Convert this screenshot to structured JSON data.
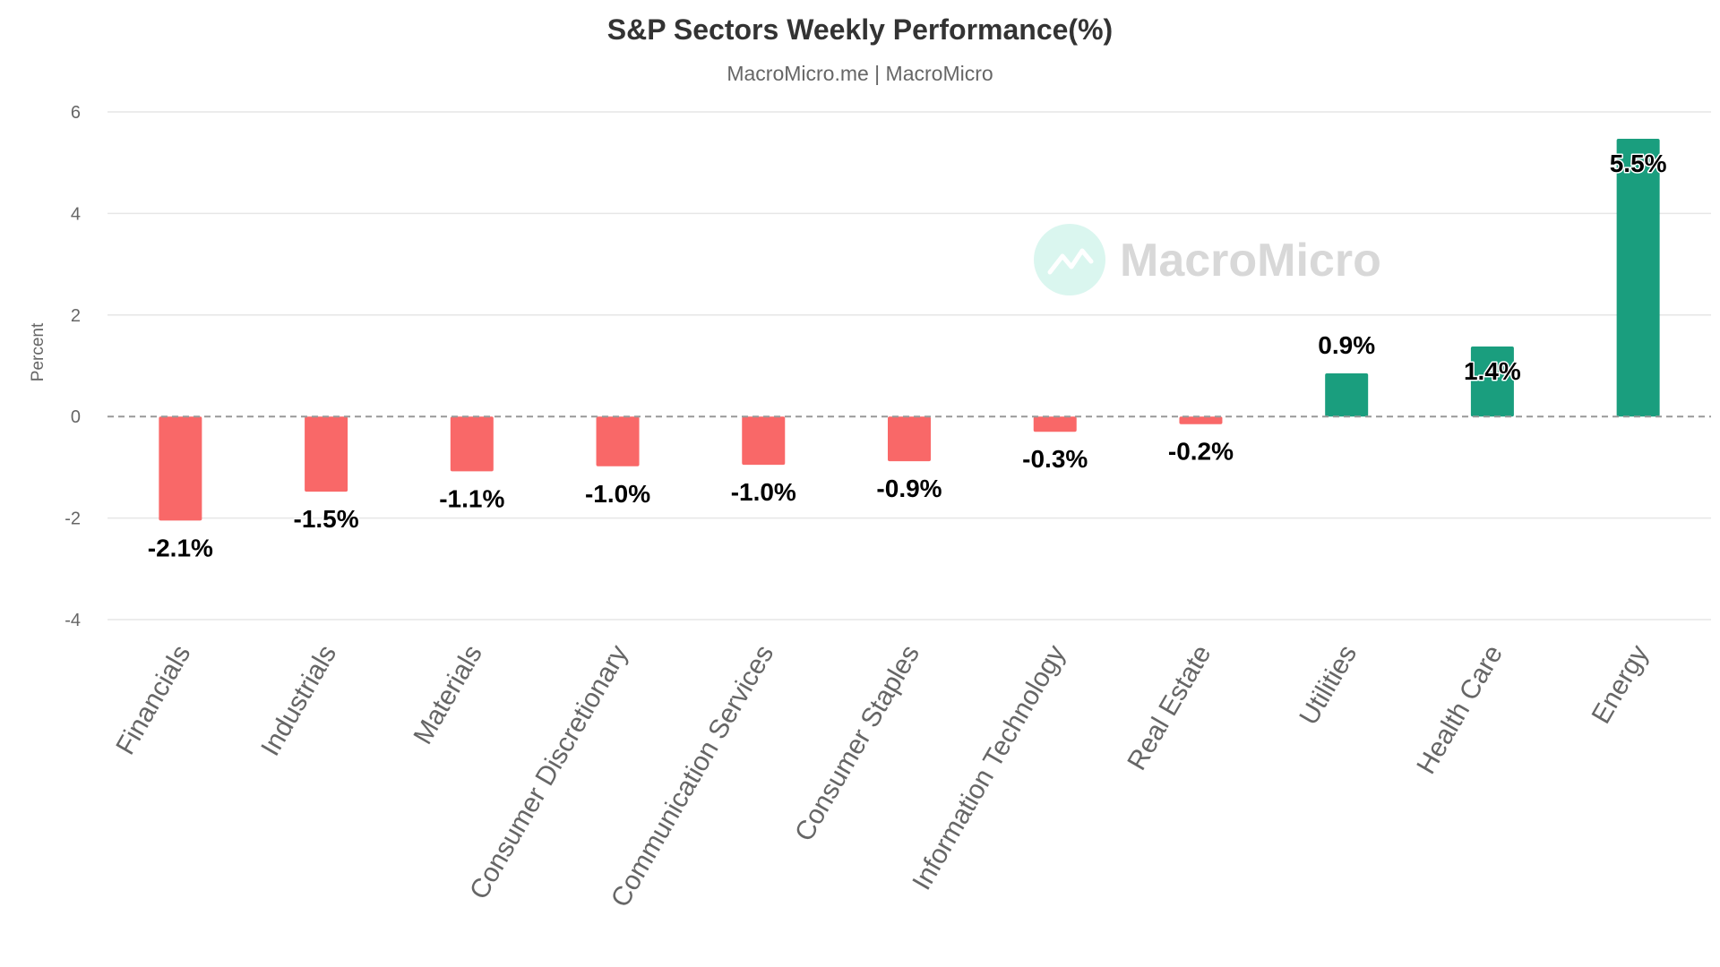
{
  "chart_data": {
    "type": "bar",
    "title": "S&P Sectors Weekly Performance(%)",
    "subtitle": "MacroMicro.me | MacroMicro",
    "ylabel": "Percent",
    "xlabel": "",
    "ylim": [
      -4,
      6
    ],
    "yticks": [
      -4,
      -2,
      0,
      2,
      4,
      6
    ],
    "grid": true,
    "legend": "none",
    "categories": [
      "Financials",
      "Industrials",
      "Materials",
      "Consumer Discretionary",
      "Communication Services",
      "Consumer Staples",
      "Information Technology",
      "Real Estate",
      "Utilities",
      "Health Care",
      "Energy"
    ],
    "values": [
      -2.05,
      -1.48,
      -1.08,
      -0.98,
      -0.95,
      -0.88,
      -0.3,
      -0.15,
      0.85,
      1.38,
      5.47
    ],
    "data_labels": [
      "-2.1%",
      "-1.5%",
      "-1.1%",
      "-1.0%",
      "-1.0%",
      "-0.9%",
      "-0.3%",
      "-0.2%",
      "0.9%",
      "1.4%",
      "5.5%"
    ],
    "colors": {
      "positive": "#1a9e7e",
      "negative": "#f96868",
      "zero_line": "#999999",
      "grid": "#e6e6e6"
    }
  },
  "watermark": {
    "text": "MacroMicro",
    "icon": "macromicro-logo-icon"
  }
}
